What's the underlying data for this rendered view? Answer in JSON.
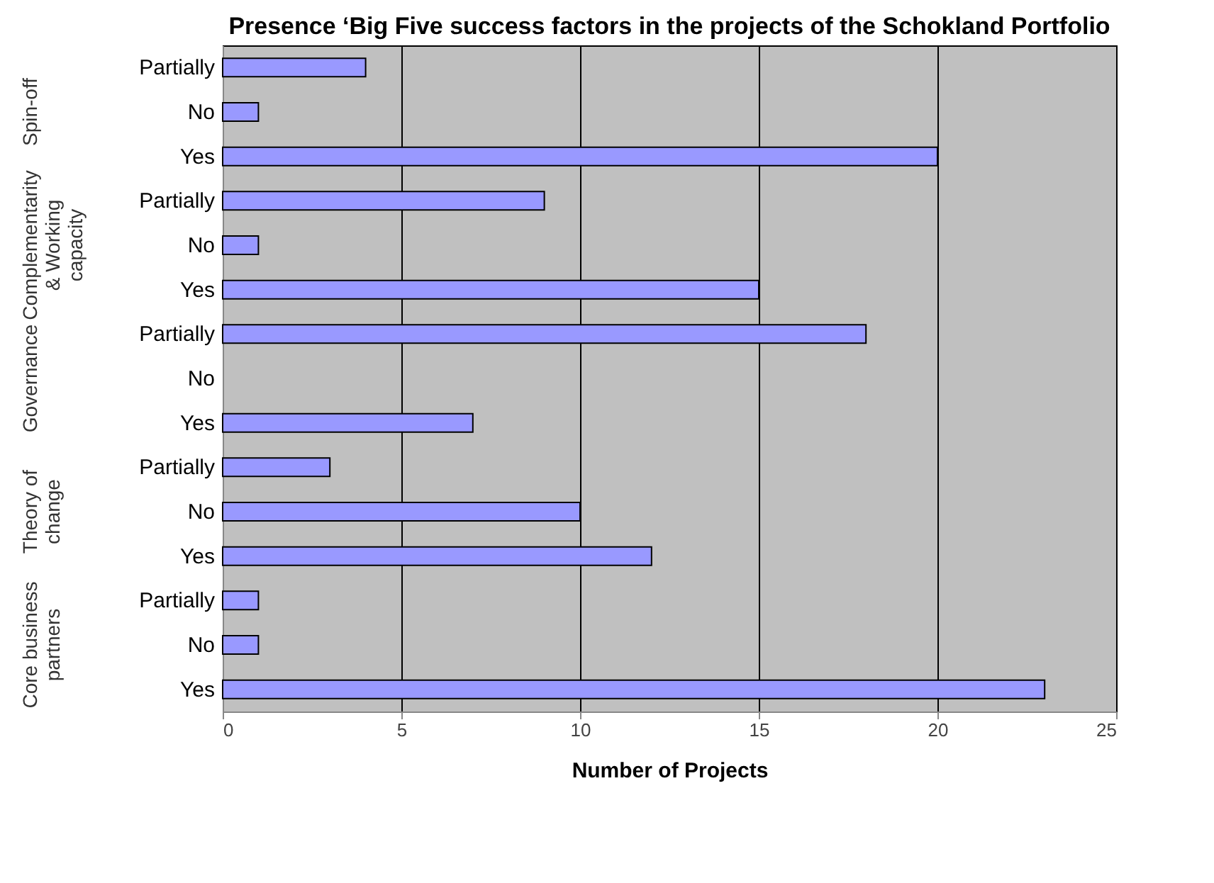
{
  "chart_data": {
    "type": "bar",
    "orientation": "horizontal",
    "title": "Presence ‘Big Five success factors in the projects of the Schokland Portfolio",
    "xlabel": "Number of Projects",
    "categories": [
      "Partially",
      "No",
      "Yes",
      "Partially",
      "No",
      "Yes",
      "Partially",
      "No",
      "Yes",
      "Partially",
      "No",
      "Yes",
      "Partially",
      "No",
      "Yes"
    ],
    "values": [
      4,
      1,
      20,
      9,
      1,
      15,
      18,
      0,
      7,
      3,
      10,
      12,
      1,
      1,
      23
    ],
    "color": "#9999ff",
    "annotations": [
      "Spin-off",
      "Complementarity & Working capacity",
      "Governance",
      "Theory of change",
      "Core business partners"
    ],
    "xlim": [
      0,
      25
    ],
    "xticks": [
      0,
      5,
      10,
      15,
      20,
      25
    ],
    "grid": "x"
  }
}
